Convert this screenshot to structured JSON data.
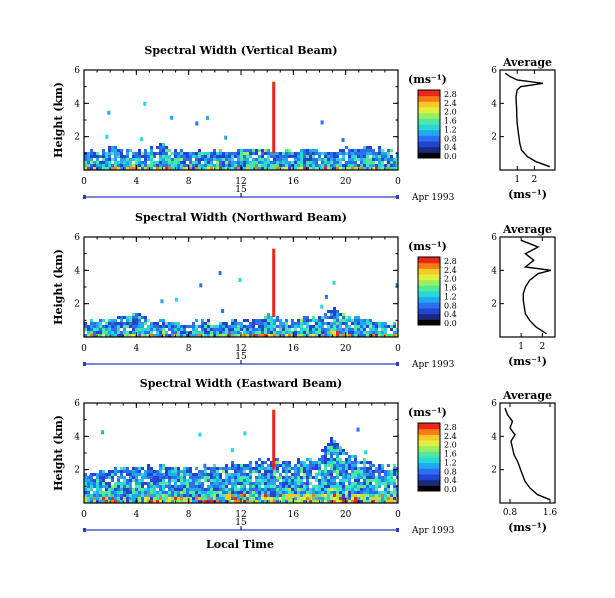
{
  "figure": {
    "bottom_xlabel": "Local Time"
  },
  "colorscale": [
    "#000000",
    "#1a2a80",
    "#2244d0",
    "#2a70f0",
    "#20a8f0",
    "#28d8d8",
    "#50e8a0",
    "#98f060",
    "#e0f040",
    "#f8c828",
    "#f87a18",
    "#e82818"
  ],
  "chart_data": [
    {
      "type": "heatmap",
      "title": "Spectral Width (Vertical Beam)",
      "ylabel": "Height (km)",
      "ylim": [
        0,
        6
      ],
      "yticks": [
        "2",
        "4",
        "6"
      ],
      "xlim": [
        0,
        24
      ],
      "xticks": [
        "0",
        "4",
        "8",
        "12",
        "16",
        "20",
        "0"
      ],
      "date_tick": "15",
      "date_label": "Apr 1993",
      "colorbar_unit": "(ms⁻¹)",
      "colorbar_ticks": [
        "0.0",
        "0.4",
        "0.8",
        "1.2",
        "1.6",
        "2.0",
        "2.4",
        "2.8"
      ],
      "colorbar_max": 2.8,
      "layer_top_km": [
        1.1,
        1.0,
        1.2,
        1.3,
        1.0,
        1.2,
        1.4,
        1.1,
        1.0,
        1.0,
        1.1,
        1.0,
        1.2,
        1.3,
        1.1,
        1.0,
        1.1,
        1.2,
        1.1,
        1.0,
        1.2,
        1.1,
        1.3,
        1.2,
        1.0
      ],
      "spike": {
        "time": 14.5,
        "from_km": 1.0,
        "to_km": 5.3,
        "value": 2.8
      },
      "average": {
        "title": "Average",
        "xlabel": "(ms⁻¹)",
        "xticks": [
          "1",
          "2"
        ],
        "xlim": [
          0,
          3.2
        ],
        "profile": [
          [
            0.2,
            2.9
          ],
          [
            0.5,
            2.1
          ],
          [
            0.8,
            1.6
          ],
          [
            1.2,
            1.25
          ],
          [
            1.6,
            1.15
          ],
          [
            2.0,
            1.1
          ],
          [
            2.4,
            1.05
          ],
          [
            2.8,
            1.0
          ],
          [
            3.2,
            0.98
          ],
          [
            3.6,
            0.97
          ],
          [
            4.0,
            0.95
          ],
          [
            4.4,
            0.93
          ],
          [
            4.8,
            1.0
          ],
          [
            5.0,
            1.2
          ],
          [
            5.2,
            2.5
          ],
          [
            5.4,
            1.0
          ],
          [
            5.6,
            0.6
          ],
          [
            5.8,
            0.3
          ]
        ]
      }
    },
    {
      "type": "heatmap",
      "title": "Spectral Width (Northward Beam)",
      "ylabel": "Height (km)",
      "ylim": [
        0,
        6
      ],
      "yticks": [
        "2",
        "4",
        "6"
      ],
      "xlim": [
        0,
        24
      ],
      "xticks": [
        "0",
        "4",
        "8",
        "12",
        "16",
        "20",
        "0"
      ],
      "date_tick": "15",
      "date_label": "Apr 1993",
      "colorbar_unit": "(ms⁻¹)",
      "colorbar_ticks": [
        "0.0",
        "0.4",
        "0.8",
        "1.2",
        "1.6",
        "2.0",
        "2.4",
        "2.8"
      ],
      "colorbar_max": 2.8,
      "layer_top_km": [
        0.8,
        0.9,
        1.0,
        1.1,
        1.4,
        1.0,
        0.9,
        0.8,
        0.8,
        0.9,
        0.8,
        0.8,
        0.9,
        1.0,
        1.2,
        1.0,
        0.9,
        1.0,
        1.1,
        1.6,
        1.3,
        1.0,
        0.9,
        0.8,
        0.8
      ],
      "spike": {
        "time": 14.5,
        "from_km": 1.2,
        "to_km": 5.3,
        "value": 2.8
      },
      "average": {
        "title": "Average",
        "xlabel": "(ms⁻¹)",
        "xticks": [
          "1",
          "2"
        ],
        "xlim": [
          0,
          2.6
        ],
        "profile": [
          [
            0.2,
            2.2
          ],
          [
            0.6,
            1.7
          ],
          [
            1.0,
            1.4
          ],
          [
            1.4,
            1.2
          ],
          [
            1.8,
            1.15
          ],
          [
            2.2,
            1.1
          ],
          [
            2.6,
            1.1
          ],
          [
            3.0,
            1.2
          ],
          [
            3.4,
            1.4
          ],
          [
            3.8,
            1.8
          ],
          [
            4.0,
            2.4
          ],
          [
            4.2,
            1.2
          ],
          [
            4.6,
            1.6
          ],
          [
            5.0,
            1.2
          ],
          [
            5.4,
            1.8
          ],
          [
            5.8,
            1.0
          ]
        ]
      }
    },
    {
      "type": "heatmap",
      "title": "Spectral Width (Eastward Beam)",
      "ylabel": "Height (km)",
      "ylim": [
        0,
        6
      ],
      "yticks": [
        "2",
        "4",
        "6"
      ],
      "xlim": [
        0,
        24
      ],
      "xticks": [
        "0",
        "4",
        "8",
        "12",
        "16",
        "20",
        "0"
      ],
      "date_tick": "15",
      "date_label": "Apr 1993",
      "colorbar_unit": "(ms⁻¹)",
      "colorbar_ticks": [
        "0.0",
        "0.4",
        "0.8",
        "1.2",
        "1.6",
        "2.0",
        "2.4",
        "2.8"
      ],
      "colorbar_max": 2.8,
      "layer_top_km": [
        1.7,
        1.8,
        1.9,
        2.0,
        2.0,
        2.1,
        2.2,
        2.1,
        2.0,
        2.0,
        2.1,
        2.2,
        2.3,
        2.4,
        2.6,
        2.5,
        2.4,
        2.6,
        2.7,
        3.9,
        3.0,
        2.6,
        2.4,
        2.2,
        2.1
      ],
      "spike": {
        "time": 14.5,
        "from_km": 2.0,
        "to_km": 5.6,
        "value": 2.8
      },
      "average": {
        "title": "Average",
        "xlabel": "(ms⁻¹)",
        "xticks": [
          "0.8",
          "1.6"
        ],
        "xlim": [
          0.6,
          1.7
        ],
        "profile": [
          [
            0.2,
            1.6
          ],
          [
            0.5,
            1.35
          ],
          [
            0.9,
            1.2
          ],
          [
            1.3,
            1.1
          ],
          [
            1.7,
            1.05
          ],
          [
            2.1,
            1.0
          ],
          [
            2.5,
            0.95
          ],
          [
            2.9,
            0.88
          ],
          [
            3.3,
            0.85
          ],
          [
            3.7,
            0.82
          ],
          [
            4.1,
            0.9
          ],
          [
            4.5,
            0.8
          ],
          [
            4.9,
            0.85
          ],
          [
            5.3,
            0.75
          ],
          [
            5.7,
            0.7
          ]
        ]
      }
    }
  ]
}
